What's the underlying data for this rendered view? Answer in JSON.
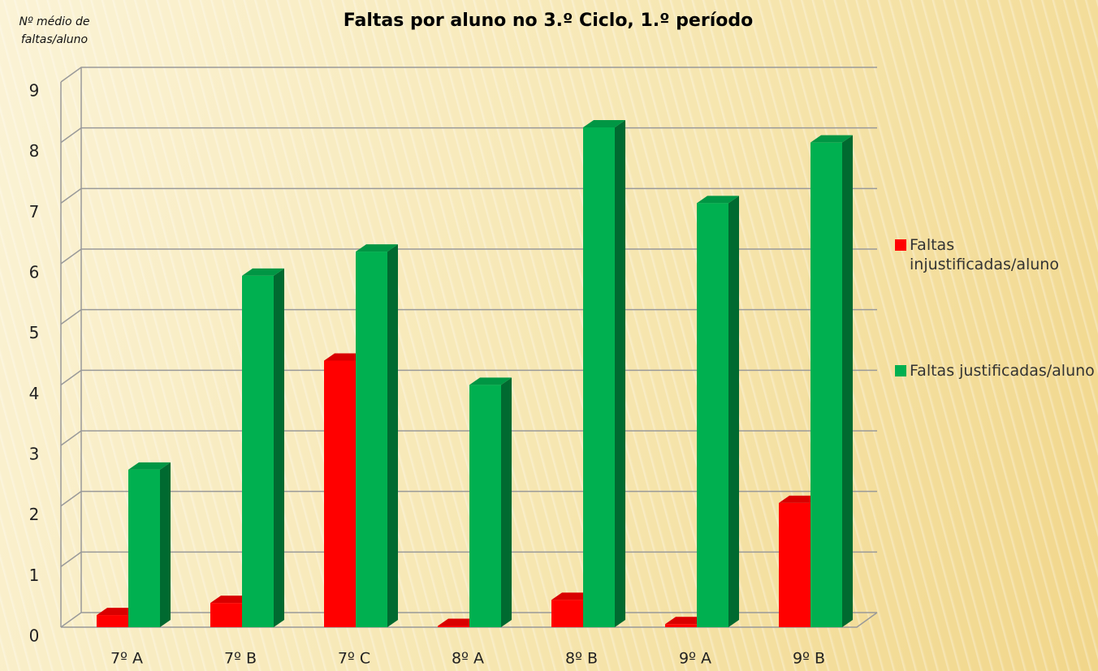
{
  "chart_data": {
    "type": "bar3d",
    "title": "Faltas por aluno no 3.º Ciclo, 1.º período",
    "y_label": "Nº médio de faltas/aluno",
    "categories": [
      "7º A",
      "7º B",
      "7º C",
      "8º A",
      "8º B",
      "9º A",
      "9º B"
    ],
    "series": [
      {
        "name": "Faltas injustificadas/aluno",
        "color": "#ff0000",
        "values": [
          0.2,
          0.4,
          4.4,
          0.02,
          0.45,
          0.05,
          2.05
        ]
      },
      {
        "name": "Faltas justificadas/aluno",
        "color": "#00b050",
        "values": [
          2.6,
          5.8,
          6.2,
          4.0,
          8.25,
          7.0,
          8.0
        ]
      }
    ],
    "ylim": [
      0,
      9
    ],
    "yticks": [
      0,
      1,
      2,
      3,
      4,
      5,
      6,
      7,
      8,
      9
    ],
    "grid": true,
    "legend": "right"
  }
}
